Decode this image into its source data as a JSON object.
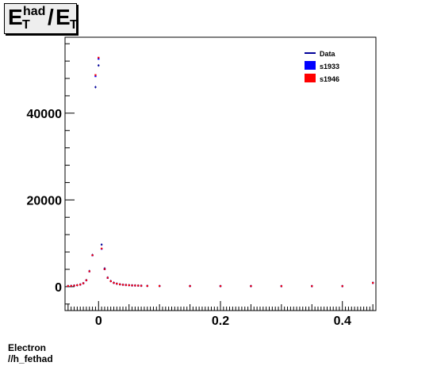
{
  "title": {
    "parts": [
      "E",
      "T",
      "had",
      "/",
      "E",
      "T"
    ]
  },
  "footer": {
    "line1": "Electron",
    "line2": "//h_fethad"
  },
  "legend": {
    "entries": [
      {
        "label": "Data",
        "style": "line",
        "color": "#000099"
      },
      {
        "label": "s1933",
        "style": "box",
        "color": "#0000ff"
      },
      {
        "label": "s1946",
        "style": "box",
        "color": "#ff0000"
      }
    ]
  },
  "chart_data": {
    "type": "bar",
    "xlim": [
      -0.055,
      0.455
    ],
    "ylim": [
      -5500,
      57500
    ],
    "xticks": [
      {
        "value": 0,
        "label": "0"
      },
      {
        "value": 0.2,
        "label": "0.2"
      },
      {
        "value": 0.4,
        "label": "0.4"
      }
    ],
    "yticks": [
      {
        "value": 0,
        "label": "0"
      },
      {
        "value": 20000,
        "label": "20000"
      },
      {
        "value": 40000,
        "label": "40000"
      }
    ],
    "bin_width": 0.005,
    "x": [
      -0.05,
      -0.045,
      -0.04,
      -0.035,
      -0.03,
      -0.025,
      -0.02,
      -0.015,
      -0.01,
      -0.005,
      0,
      0.005,
      0.01,
      0.015,
      0.02,
      0.025,
      0.03,
      0.035,
      0.04,
      0.045,
      0.05,
      0.055,
      0.06,
      0.065,
      0.07,
      0.08,
      0.1,
      0.15,
      0.2,
      0.25,
      0.3,
      0.35,
      0.4,
      0.45
    ],
    "series": [
      {
        "name": "Data",
        "color": "#000099",
        "values": [
          150,
          180,
          250,
          350,
          500,
          800,
          1500,
          3600,
          7300,
          46000,
          51000,
          9700,
          4200,
          2100,
          1300,
          900,
          700,
          550,
          450,
          400,
          350,
          300,
          280,
          250,
          220,
          180,
          160,
          150,
          140,
          140,
          130,
          130,
          130,
          900
        ]
      },
      {
        "name": "s1933",
        "color": "#0000ff",
        "values": [
          140,
          170,
          240,
          340,
          480,
          780,
          1450,
          3500,
          7200,
          48500,
          52500,
          8700,
          4000,
          2000,
          1250,
          870,
          680,
          530,
          440,
          390,
          340,
          290,
          270,
          240,
          210,
          170,
          150,
          140,
          130,
          130,
          120,
          120,
          120,
          850
        ]
      },
      {
        "name": "s1946",
        "color": "#ff0000",
        "values": [
          145,
          175,
          245,
          345,
          490,
          790,
          1480,
          3550,
          7250,
          48800,
          52800,
          8800,
          4050,
          2050,
          1270,
          880,
          690,
          540,
          445,
          395,
          345,
          295,
          275,
          245,
          215,
          175,
          155,
          145,
          135,
          135,
          125,
          125,
          125,
          870
        ]
      }
    ]
  }
}
